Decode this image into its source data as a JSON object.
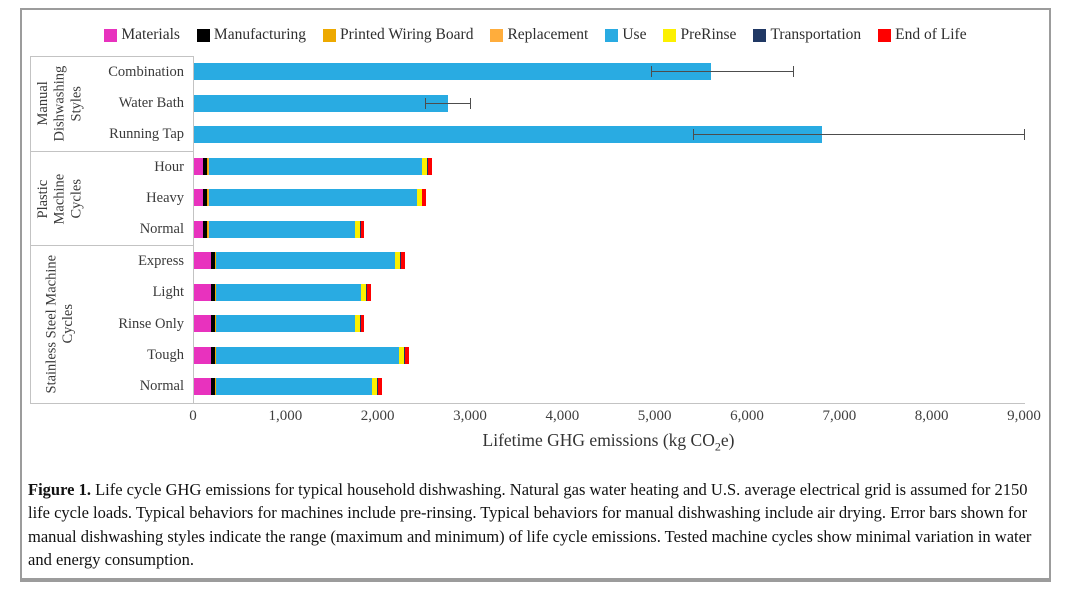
{
  "figure": {
    "caption_label": "Figure 1.",
    "caption_text": "Life cycle GHG emissions for typical household dishwashing. Natural gas water heating and U.S. average electrical grid is assumed for 2150 life cycle loads. Typical behaviors for machines include pre-rinsing. Typical behaviors for manual dishwashing include air drying. Error bars shown for manual dishwashing styles indicate the range (maximum and minimum) of life cycle emissions. Tested machine cycles show minimal variation in water and energy consumption."
  },
  "axis": {
    "xlabel_prefix": "Lifetime GHG emissions (kg CO",
    "xlabel_sub": "2",
    "xlabel_suffix": "e)"
  },
  "chart_data": {
    "type": "bar",
    "orientation": "horizontal-stacked",
    "title": "",
    "xlabel": "Lifetime GHG emissions (kg CO2e)",
    "ylabel": "",
    "xlim": [
      0,
      9000
    ],
    "xticks": [
      0,
      1000,
      2000,
      3000,
      4000,
      5000,
      6000,
      7000,
      8000,
      9000
    ],
    "xtick_labels": [
      "0",
      "1,000",
      "2,000",
      "3,000",
      "4,000",
      "5,000",
      "6,000",
      "7,000",
      "8,000",
      "9,000"
    ],
    "grid": false,
    "legend_position": "top",
    "error_bar_color": "#4d4d4d",
    "stack_order": [
      "materials",
      "manufacturing",
      "printed_wiring_board",
      "replacement",
      "use",
      "prerinse",
      "transportation",
      "end_of_life"
    ],
    "legend": [
      {
        "key": "materials",
        "label": "Materials",
        "color": "#E832BE"
      },
      {
        "key": "manufacturing",
        "label": "Manufacturing",
        "color": "#000000"
      },
      {
        "key": "printed_wiring_board",
        "label": "Printed Wiring Board",
        "color": "#EDA900"
      },
      {
        "key": "replacement",
        "label": "Replacement",
        "color": "#FFAD3C"
      },
      {
        "key": "use",
        "label": "Use",
        "color": "#29ABE2"
      },
      {
        "key": "prerinse",
        "label": "PreRinse",
        "color": "#FCF000"
      },
      {
        "key": "transportation",
        "label": "Transportation",
        "color": "#203864"
      },
      {
        "key": "end_of_life",
        "label": "End of Life",
        "color": "#FE0000"
      }
    ],
    "groups": [
      {
        "name": "Manual Dishwashing Styles",
        "rows": [
          {
            "label": "Combination",
            "values": {
              "use": 5600
            },
            "error_range": [
              4950,
              6500
            ]
          },
          {
            "label": "Water Bath",
            "values": {
              "use": 2750
            },
            "error_range": [
              2500,
              3000
            ]
          },
          {
            "label": "Running Tap",
            "values": {
              "use": 6800
            },
            "error_range": [
              5400,
              9000
            ]
          }
        ]
      },
      {
        "name": "Plastic Machine Cycles",
        "rows": [
          {
            "label": "Hour",
            "values": {
              "materials": 100,
              "manufacturing": 45,
              "printed_wiring_board": 8,
              "replacement": 8,
              "use": 2310,
              "prerinse": 55,
              "transportation": 8,
              "end_of_life": 40
            }
          },
          {
            "label": "Heavy",
            "values": {
              "materials": 100,
              "manufacturing": 45,
              "printed_wiring_board": 8,
              "replacement": 8,
              "use": 2250,
              "prerinse": 55,
              "transportation": 8,
              "end_of_life": 40
            }
          },
          {
            "label": "Normal",
            "values": {
              "materials": 100,
              "manufacturing": 45,
              "printed_wiring_board": 8,
              "replacement": 8,
              "use": 1580,
              "prerinse": 55,
              "transportation": 8,
              "end_of_life": 40
            }
          }
        ]
      },
      {
        "name": "Stainless Steel Machine Cycles",
        "rows": [
          {
            "label": "Express",
            "values": {
              "materials": 185,
              "manufacturing": 40,
              "printed_wiring_board": 8,
              "replacement": 8,
              "use": 1940,
              "prerinse": 55,
              "transportation": 8,
              "end_of_life": 40
            }
          },
          {
            "label": "Light",
            "values": {
              "materials": 185,
              "manufacturing": 40,
              "printed_wiring_board": 8,
              "replacement": 8,
              "use": 1570,
              "prerinse": 55,
              "transportation": 8,
              "end_of_life": 40
            }
          },
          {
            "label": "Rinse Only",
            "values": {
              "materials": 185,
              "manufacturing": 40,
              "printed_wiring_board": 8,
              "replacement": 8,
              "use": 1500,
              "prerinse": 55,
              "transportation": 8,
              "end_of_life": 40
            }
          },
          {
            "label": "Tough",
            "values": {
              "materials": 185,
              "manufacturing": 40,
              "printed_wiring_board": 8,
              "replacement": 8,
              "use": 1980,
              "prerinse": 55,
              "transportation": 8,
              "end_of_life": 40
            }
          },
          {
            "label": "Normal",
            "values": {
              "materials": 185,
              "manufacturing": 40,
              "printed_wiring_board": 8,
              "replacement": 8,
              "use": 1690,
              "prerinse": 55,
              "transportation": 8,
              "end_of_life": 40
            }
          }
        ]
      }
    ]
  }
}
